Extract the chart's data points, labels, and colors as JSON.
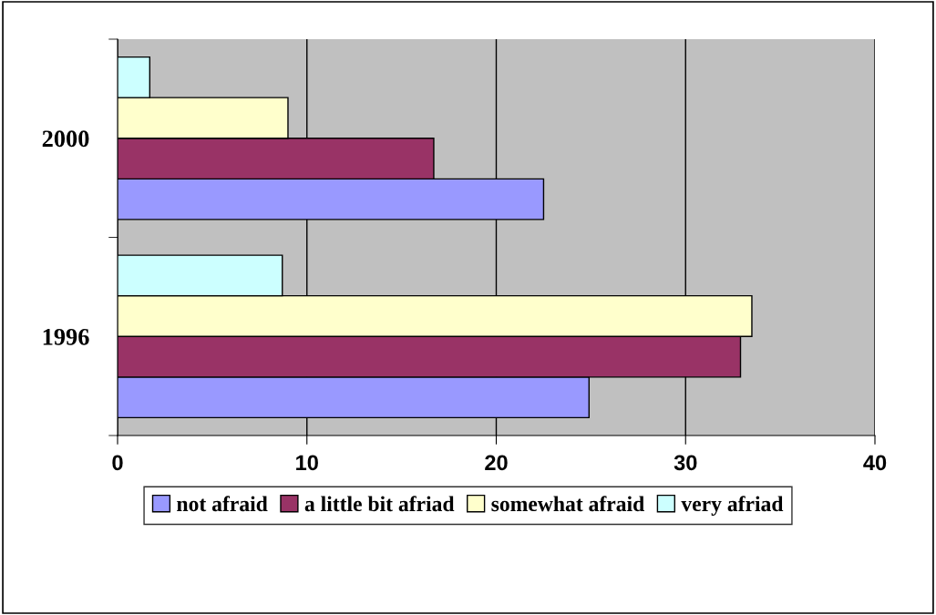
{
  "chart_data": {
    "type": "bar",
    "orientation": "horizontal",
    "categories": [
      "2000",
      "1996"
    ],
    "series": [
      {
        "name": "not afraid",
        "color": "#9999ff",
        "values": [
          22.5,
          24.9
        ]
      },
      {
        "name": "a little bit afriad",
        "color": "#993366",
        "values": [
          16.7,
          32.9
        ]
      },
      {
        "name": "somewhat afraid",
        "color": "#ffffcc",
        "values": [
          9.0,
          33.5
        ]
      },
      {
        "name": "very afriad",
        "color": "#ccffff",
        "values": [
          1.7,
          8.7
        ]
      }
    ],
    "xlim": [
      0,
      40
    ],
    "xticks": [
      0,
      10,
      20,
      30,
      40
    ],
    "grid": "x",
    "legend": "bottom"
  }
}
